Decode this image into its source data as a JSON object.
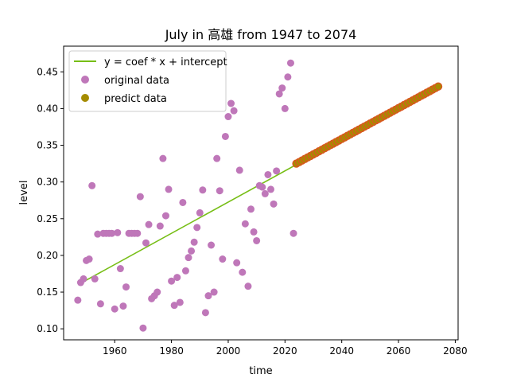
{
  "chart_data": {
    "type": "scatter",
    "title": "July in 高雄 from 1947 to 2074",
    "xlabel": "time",
    "ylabel": "level",
    "xlim": [
      1942,
      2081
    ],
    "ylim": [
      0.085,
      0.485
    ],
    "xticks": [
      1960,
      1980,
      2000,
      2020,
      2040,
      2060,
      2080
    ],
    "yticks": [
      0.1,
      0.15,
      0.2,
      0.25,
      0.3,
      0.35,
      0.4,
      0.45
    ],
    "grid": false,
    "legend_position": "top-left",
    "series": [
      {
        "name": "y = coef * x + intercept",
        "kind": "line",
        "color": "#77be16",
        "x": [
          1948,
          2074
        ],
        "y": [
          0.162,
          0.43
        ]
      },
      {
        "name": "original data",
        "kind": "scatter",
        "color": "#bf77b9",
        "x": [
          1947,
          1948,
          1949,
          1950,
          1951,
          1952,
          1953,
          1954,
          1955,
          1956,
          1957,
          1958,
          1959,
          1960,
          1961,
          1962,
          1963,
          1964,
          1965,
          1966,
          1967,
          1968,
          1969,
          1970,
          1971,
          1972,
          1973,
          1974,
          1975,
          1976,
          1977,
          1978,
          1979,
          1980,
          1981,
          1982,
          1983,
          1984,
          1985,
          1986,
          1987,
          1988,
          1989,
          1990,
          1991,
          1992,
          1993,
          1994,
          1995,
          1996,
          1997,
          1998,
          1999,
          2000,
          2001,
          2002,
          2003,
          2004,
          2005,
          2006,
          2007,
          2008,
          2009,
          2010,
          2011,
          2012,
          2013,
          2014,
          2015,
          2016,
          2017,
          2018,
          2019,
          2020,
          2021,
          2022,
          2023
        ],
        "y": [
          0.139,
          0.163,
          0.168,
          0.193,
          0.195,
          0.295,
          0.168,
          0.229,
          0.134,
          0.23,
          0.23,
          0.23,
          0.23,
          0.127,
          0.231,
          0.182,
          0.131,
          0.157,
          0.23,
          0.23,
          0.23,
          0.23,
          0.28,
          0.101,
          0.217,
          0.242,
          0.141,
          0.145,
          0.15,
          0.24,
          0.332,
          0.254,
          0.29,
          0.165,
          0.132,
          0.17,
          0.136,
          0.272,
          0.179,
          0.197,
          0.206,
          0.218,
          0.238,
          0.258,
          0.289,
          0.122,
          0.145,
          0.214,
          0.15,
          0.332,
          0.288,
          0.195,
          0.362,
          0.389,
          0.407,
          0.397,
          0.19,
          0.316,
          0.177,
          0.243,
          0.158,
          0.263,
          0.232,
          0.22,
          0.295,
          0.293,
          0.284,
          0.31,
          0.29,
          0.27,
          0.315,
          0.42,
          0.428,
          0.4,
          0.443,
          0.462,
          0.23
        ]
      },
      {
        "name": "predict data",
        "kind": "scatter",
        "color": "#a58c00",
        "edgecolor": "#d9581e",
        "x_start": 2024,
        "x_end": 2074,
        "y_start": 0.325,
        "y_end": 0.43
      }
    ]
  }
}
